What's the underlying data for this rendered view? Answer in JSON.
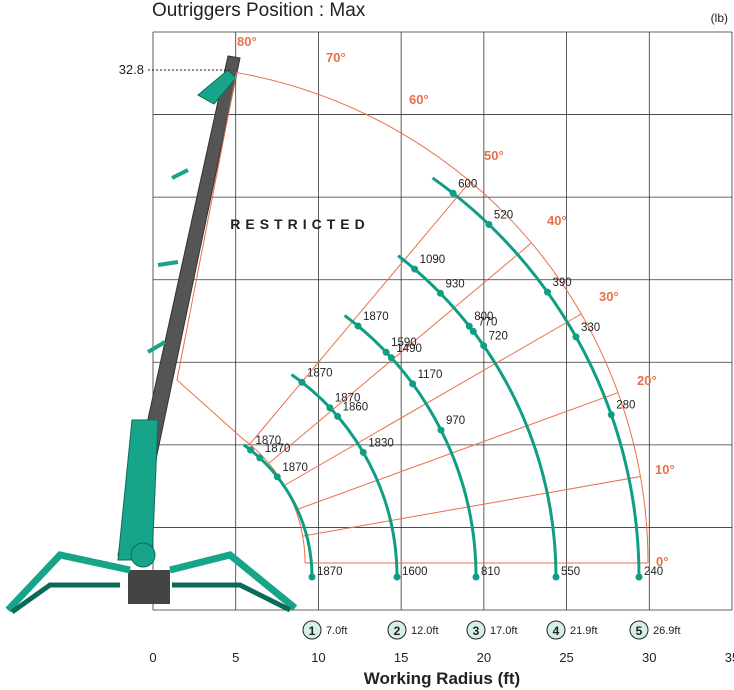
{
  "chart_data": {
    "type": "load-chart",
    "title": "Outriggers Position : Max",
    "unit": "(lb)",
    "restricted": "RESTRICTED",
    "height_mark": 32.8,
    "angles": [
      "80°",
      "70°",
      "60°",
      "50°",
      "40°",
      "30°",
      "20°",
      "10°",
      "0°"
    ],
    "xlabel": "Working Radius (ft)",
    "xlim": [
      0,
      35
    ],
    "xticks": [
      0,
      5,
      10,
      15,
      20,
      25,
      30,
      35
    ],
    "radii": [
      {
        "number": 1,
        "label": "7.0ft",
        "loads": [
          1870,
          1870,
          1870,
          1870
        ]
      },
      {
        "number": 2,
        "label": "12.0ft",
        "loads": [
          1600,
          1830,
          1860,
          1870,
          1870
        ]
      },
      {
        "number": 3,
        "label": "17.0ft",
        "loads": [
          810,
          970,
          1170,
          1490,
          1590,
          1870
        ]
      },
      {
        "number": 4,
        "label": "21.9ft",
        "loads": [
          550,
          720,
          770,
          800,
          930,
          1090
        ]
      },
      {
        "number": 5,
        "label": "26.9ft",
        "loads": [
          240,
          280,
          330,
          390,
          520,
          600
        ]
      }
    ]
  }
}
